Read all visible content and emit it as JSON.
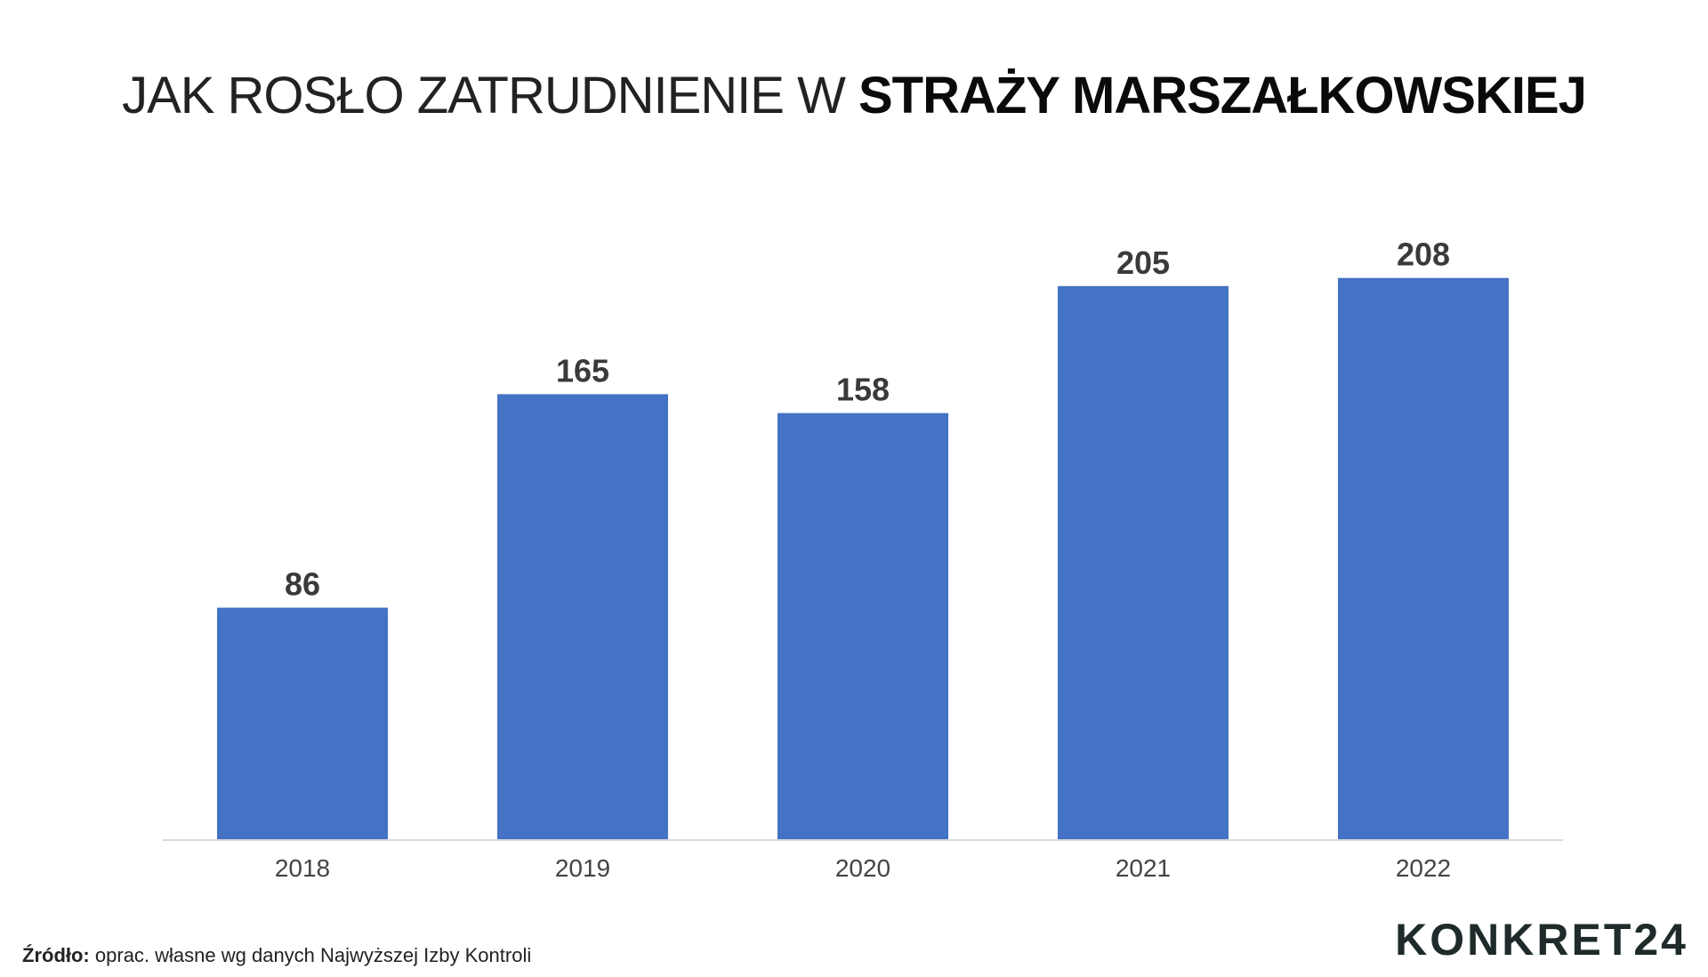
{
  "header": {
    "title_light": "JAK ROSŁO ZATRUDNIENIE W",
    "title_bold": "STRAŻY MARSZAŁKOWSKIEJ"
  },
  "footer": {
    "source_label": "Źródło:",
    "source_text": "oprac. własne wg danych Najwyższej Izby Kontroli",
    "logo_text": "KONKRET24"
  },
  "colors": {
    "bar": "#4472C4",
    "axis": "#d9d9d9"
  },
  "chart_data": {
    "type": "bar",
    "title": "JAK ROSŁO ZATRUDNIENIE W STRAŻY MARSZAŁKOWSKIEJ",
    "xlabel": "",
    "ylabel": "",
    "categories": [
      "2018",
      "2019",
      "2020",
      "2021",
      "2022"
    ],
    "values": [
      86,
      165,
      158,
      205,
      208
    ],
    "data_labels": [
      "86",
      "165",
      "158",
      "205",
      "208"
    ],
    "ylim": [
      0,
      250
    ],
    "grid": false,
    "legend": "none"
  }
}
